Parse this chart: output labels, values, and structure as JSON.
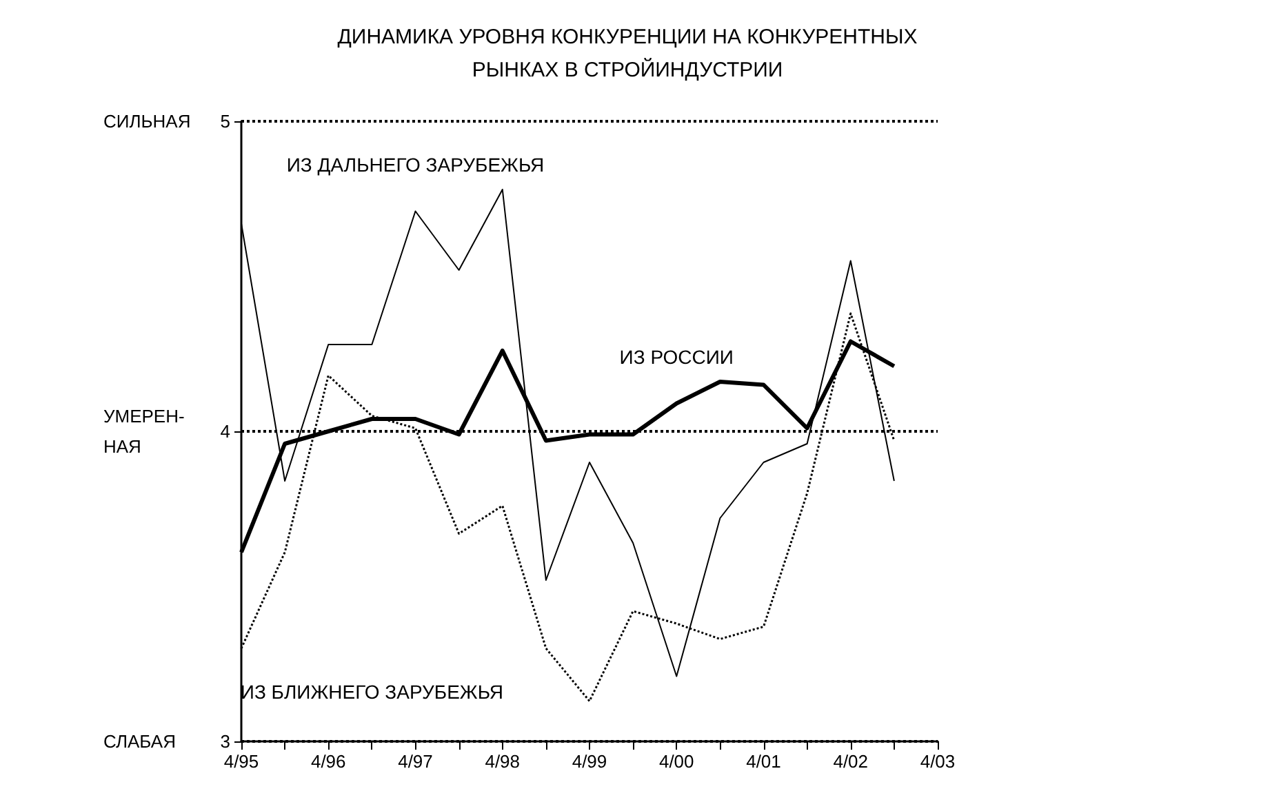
{
  "chart_data": {
    "type": "line",
    "title": "ДИНАМИКА УРОВНЯ КОНКУРЕНЦИИ НА КОНКУРЕНТНЫХ\nРЫНКАХ В СТРОЙИНДУСТРИИ",
    "categories": [
      "4/95",
      null,
      "4/96",
      null,
      "4/97",
      null,
      "4/98",
      null,
      "4/99",
      null,
      "4/00",
      null,
      "4/01",
      null,
      "4/02",
      null,
      "4/03"
    ],
    "series": [
      {
        "name": "ИЗ РОССИИ",
        "color": "#000000",
        "line_style": "solid",
        "values": [
          3.61,
          3.96,
          4.0,
          4.04,
          4.04,
          3.99,
          4.26,
          3.97,
          3.99,
          3.99,
          4.09,
          4.16,
          4.15,
          4.01,
          4.29,
          4.21,
          null
        ]
      },
      {
        "name": "ИЗ ДАЛЬНЕГО ЗАРУБЕЖЬЯ",
        "color": "#000000",
        "line_style": "solid",
        "values": [
          4.67,
          3.84,
          4.28,
          4.28,
          4.71,
          4.52,
          4.78,
          3.52,
          3.9,
          3.64,
          3.21,
          3.72,
          3.9,
          3.96,
          4.55,
          3.84,
          null
        ]
      },
      {
        "name": "ИЗ БЛИЖНЕГО ЗАРУБЕЖЬЯ",
        "color": "#000000",
        "line_style": "dotted",
        "values": [
          3.3,
          3.61,
          4.18,
          4.05,
          4.01,
          3.67,
          3.76,
          3.3,
          3.13,
          3.42,
          3.38,
          3.33,
          3.37,
          3.8,
          4.38,
          3.97,
          null
        ]
      }
    ],
    "ylim": [
      3,
      5
    ],
    "yticks": [
      3,
      4,
      5
    ],
    "annotations": [
      "СИЛЬНАЯ",
      "УМЕРЕН-\nНАЯ",
      "СЛАБАЯ"
    ],
    "grid": "y",
    "legend": false,
    "marker": "none"
  }
}
